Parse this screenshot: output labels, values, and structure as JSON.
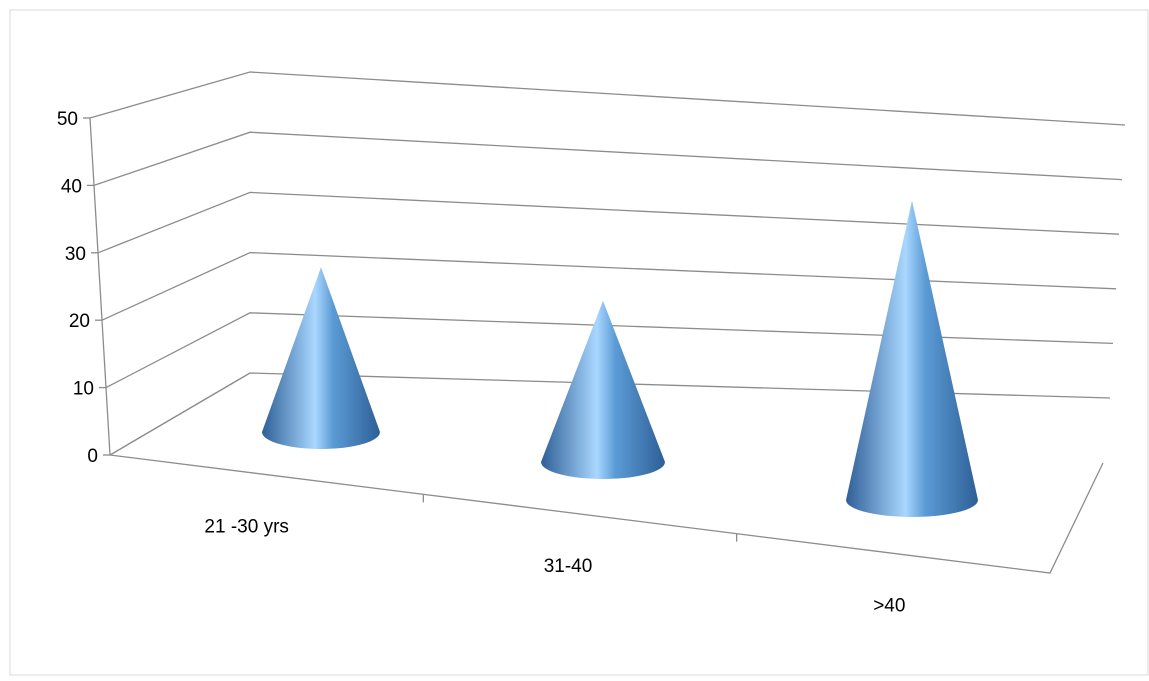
{
  "chart_data": {
    "type": "bar",
    "style": "3d-cone",
    "categories": [
      "21 -30 yrs",
      "31-40",
      ">40"
    ],
    "values": [
      27,
      25,
      44
    ],
    "title": "",
    "xlabel": "",
    "ylabel": "",
    "ylim": [
      0,
      50
    ],
    "yticks": [
      "0",
      "10",
      "20",
      "30",
      "40",
      "50"
    ],
    "grid": true,
    "legend": "none",
    "colors": {
      "cone_dark": "#2E5F96",
      "cone_mid": "#5B9BD5",
      "cone_light": "#A9D7FF",
      "gridline": "#8C8C8C",
      "frame_border": "#D9D9D9"
    }
  }
}
